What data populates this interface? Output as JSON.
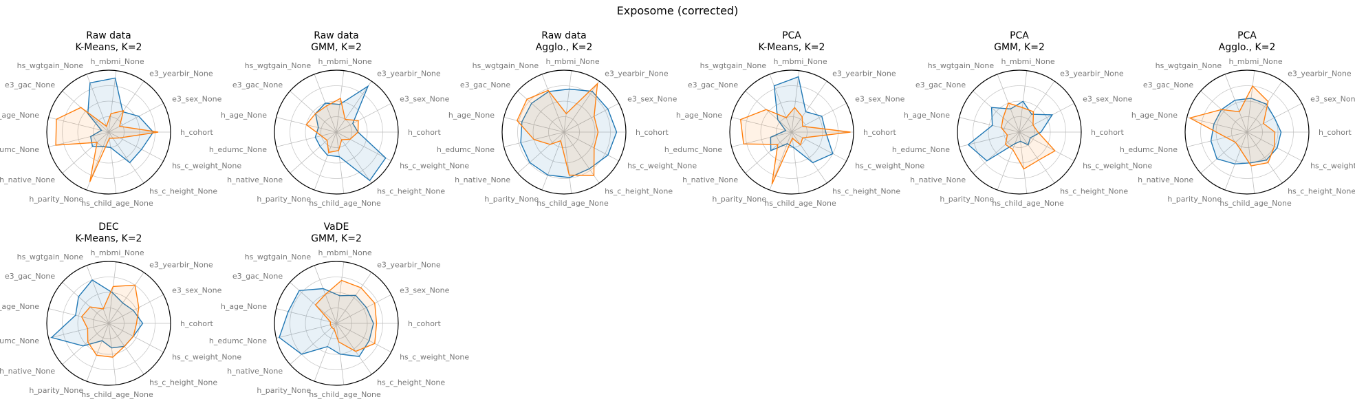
{
  "figure": {
    "suptitle": "Exposome (corrected)"
  },
  "chart_data": [
    {
      "type": "radar",
      "title": [
        "Raw data",
        "K-Means, K=2"
      ],
      "variables": [
        "h_cohort",
        "e3_sex_None",
        "e3_yearbir_None",
        "h_mbmi_None",
        "hs_wgtgain_None",
        "e3_gac_None",
        "h_age_None",
        "h_edumc_None",
        "h_native_None",
        "h_parity_None",
        "hs_child_age_None",
        "hs_c_height_None",
        "hs_c_weight_None"
      ],
      "rlim": [
        0,
        1
      ],
      "series": [
        {
          "color": "#1f77b4",
          "values": [
            0.72,
            0.55,
            0.4,
            0.88,
            0.85,
            0.45,
            0.12,
            0.3,
            0.35,
            0.25,
            0.25,
            0.6,
            0.6
          ]
        },
        {
          "color": "#ff7f0e",
          "values": [
            0.8,
            0.2,
            0.42,
            0.3,
            0.1,
            0.6,
            0.87,
            0.88,
            0.25,
            0.86,
            0.1,
            0.12,
            0.2
          ]
        }
      ]
    },
    {
      "type": "radar",
      "title": [
        "Raw data",
        "GMM, K=2"
      ],
      "variables": [
        "h_cohort",
        "e3_sex_None",
        "e3_yearbir_None",
        "h_mbmi_None",
        "hs_wgtgain_None",
        "e3_gac_None",
        "h_age_None",
        "h_edumc_None",
        "h_native_None",
        "h_parity_None",
        "hs_child_age_None",
        "hs_c_height_None",
        "hs_c_weight_None"
      ],
      "rlim": [
        0,
        1
      ],
      "series": [
        {
          "color": "#1f77b4",
          "values": [
            0.35,
            0.3,
            0.9,
            0.45,
            0.5,
            0.45,
            0.3,
            0.35,
            0.35,
            0.4,
            0.4,
            0.95,
            0.9
          ]
        },
        {
          "color": "#ff7f0e",
          "values": [
            0.35,
            0.4,
            0.25,
            0.55,
            0.45,
            0.45,
            0.5,
            0.25,
            0.2,
            0.35,
            0.3,
            0.15,
            0.25
          ]
        }
      ]
    },
    {
      "type": "radar",
      "title": [
        "Raw data",
        "Agglo., K=2"
      ],
      "variables": [
        "h_cohort",
        "e3_sex_None",
        "e3_yearbir_None",
        "h_mbmi_None",
        "hs_wgtgain_None",
        "e3_gac_None",
        "h_age_None",
        "h_edumc_None",
        "h_native_None",
        "h_parity_None",
        "hs_child_age_None",
        "hs_c_height_None",
        "hs_c_weight_None"
      ],
      "rlim": [
        0,
        1
      ],
      "series": [
        {
          "color": "#1f77b4",
          "values": [
            0.85,
            0.8,
            0.8,
            0.7,
            0.7,
            0.7,
            0.7,
            0.72,
            0.74,
            0.74,
            0.74,
            0.72,
            0.8
          ]
        },
        {
          "color": "#ff7f0e",
          "values": [
            0.55,
            0.55,
            0.95,
            0.3,
            0.72,
            0.8,
            0.78,
            0.5,
            0.3,
            0.15,
            0.7,
            0.85,
            0.55
          ]
        }
      ]
    },
    {
      "type": "radar",
      "title": [
        "PCA",
        "K-Means, K=2"
      ],
      "variables": [
        "h_cohort",
        "e3_sex_None",
        "e3_yearbir_None",
        "h_mbmi_None",
        "hs_wgtgain_None",
        "e3_gac_None",
        "h_age_None",
        "h_edumc_None",
        "h_native_None",
        "h_parity_None",
        "hs_child_age_None",
        "hs_c_height_None",
        "hs_c_weight_None"
      ],
      "rlim": [
        0,
        1
      ],
      "series": [
        {
          "color": "#1f77b4",
          "values": [
            0.55,
            0.55,
            0.4,
            0.9,
            0.8,
            0.3,
            0.1,
            0.35,
            0.45,
            0.2,
            0.25,
            0.6,
            0.75
          ]
        },
        {
          "color": "#ff7f0e",
          "values": [
            0.95,
            0.2,
            0.3,
            0.4,
            0.25,
            0.55,
            0.85,
            0.8,
            0.3,
            0.9,
            0.1,
            0.25,
            0.2
          ]
        }
      ]
    },
    {
      "type": "radar",
      "title": [
        "PCA",
        "GMM, K=2"
      ],
      "variables": [
        "h_cohort",
        "e3_sex_None",
        "e3_yearbir_None",
        "h_mbmi_None",
        "hs_wgtgain_None",
        "e3_gac_None",
        "h_age_None",
        "h_edumc_None",
        "h_native_None",
        "h_parity_None",
        "hs_child_age_None",
        "hs_c_height_None",
        "hs_c_weight_None"
      ],
      "rlim": [
        0,
        1
      ],
      "series": [
        {
          "color": "#1f77b4",
          "values": [
            0.35,
            0.6,
            0.35,
            0.5,
            0.4,
            0.6,
            0.45,
            0.85,
            0.7,
            0.2,
            0.15,
            0.25,
            0.2
          ]
        },
        {
          "color": "#ff7f0e",
          "values": [
            0.3,
            0.25,
            0.4,
            0.4,
            0.5,
            0.35,
            0.3,
            0.2,
            0.3,
            0.3,
            0.6,
            0.55,
            0.65
          ]
        }
      ]
    },
    {
      "type": "radar",
      "title": [
        "PCA",
        "Agglo., K=2"
      ],
      "variables": [
        "h_cohort",
        "e3_sex_None",
        "e3_yearbir_None",
        "h_mbmi_None",
        "hs_wgtgain_None",
        "e3_gac_None",
        "h_age_None",
        "h_edumc_None",
        "h_native_None",
        "h_parity_None",
        "hs_child_age_None",
        "hs_c_height_None",
        "hs_c_weight_None"
      ],
      "rlim": [
        0,
        1
      ],
      "series": [
        {
          "color": "#1f77b4",
          "values": [
            0.55,
            0.5,
            0.55,
            0.55,
            0.55,
            0.55,
            0.55,
            0.6,
            0.65,
            0.55,
            0.5,
            0.55,
            0.55
          ]
        },
        {
          "color": "#ff7f0e",
          "values": [
            0.45,
            0.3,
            0.6,
            0.75,
            0.35,
            0.55,
            0.95,
            0.35,
            0.25,
            0.3,
            0.55,
            0.6,
            0.5
          ]
        }
      ]
    },
    {
      "type": "radar",
      "title": [
        "DEC",
        "K-Means, K=2"
      ],
      "variables": [
        "h_cohort",
        "e3_sex_None",
        "e3_yearbir_None",
        "h_mbmi_None",
        "hs_wgtgain_None",
        "e3_gac_None",
        "h_age_None",
        "h_edumc_None",
        "h_native_None",
        "h_parity_None",
        "hs_child_age_None",
        "hs_c_height_None",
        "hs_c_weight_None"
      ],
      "rlim": [
        0,
        1
      ],
      "series": [
        {
          "color": "#1f77b4",
          "values": [
            0.55,
            0.45,
            0.4,
            0.5,
            0.75,
            0.65,
            0.55,
            0.95,
            0.55,
            0.3,
            0.4,
            0.45,
            0.45
          ]
        },
        {
          "color": "#ff7f0e",
          "values": [
            0.45,
            0.55,
            0.75,
            0.6,
            0.25,
            0.4,
            0.45,
            0.35,
            0.45,
            0.55,
            0.55,
            0.45,
            0.45
          ]
        }
      ]
    },
    {
      "type": "radar",
      "title": [
        "VaDE",
        "GMM, K=2"
      ],
      "variables": [
        "h_cohort",
        "e3_sex_None",
        "e3_yearbir_None",
        "h_mbmi_None",
        "hs_wgtgain_None",
        "e3_gac_None",
        "h_age_None",
        "h_edumc_None",
        "h_native_None",
        "h_parity_None",
        "hs_child_age_None",
        "hs_c_height_None",
        "hs_c_weight_None"
      ],
      "rlim": [
        0,
        1
      ],
      "series": [
        {
          "color": "#1f77b4",
          "values": [
            0.6,
            0.55,
            0.55,
            0.45,
            0.6,
            0.8,
            0.8,
            0.95,
            0.75,
            0.4,
            0.5,
            0.65,
            0.6
          ]
        },
        {
          "color": "#ff7f0e",
          "values": [
            0.65,
            0.7,
            0.7,
            0.7,
            0.5,
            0.45,
            0.1,
            0.1,
            0.1,
            0.1,
            0.3,
            0.55,
            0.7
          ]
        }
      ]
    }
  ]
}
